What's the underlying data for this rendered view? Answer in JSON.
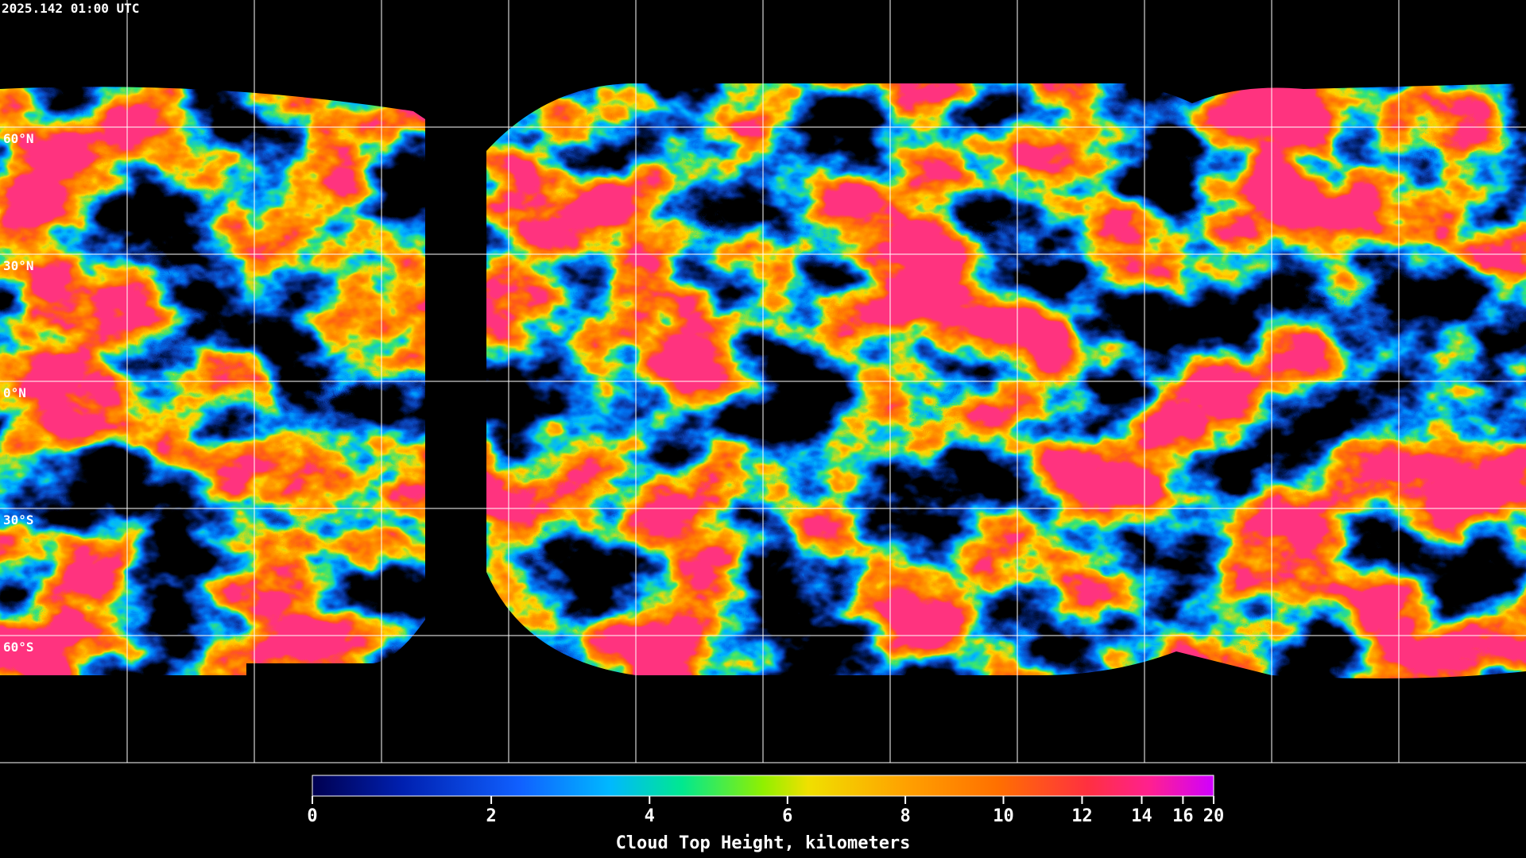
{
  "timestamp": "2025.142 01:00 UTC",
  "latitude_labels": [
    "60°N",
    "30°N",
    "0°N",
    "30°S",
    "60°S"
  ],
  "colorbar": {
    "title": "Cloud Top Height, kilometers",
    "lim": [
      0,
      20
    ],
    "ticks": [
      0,
      2,
      4,
      6,
      8,
      10,
      12,
      14,
      16,
      20
    ]
  }
}
